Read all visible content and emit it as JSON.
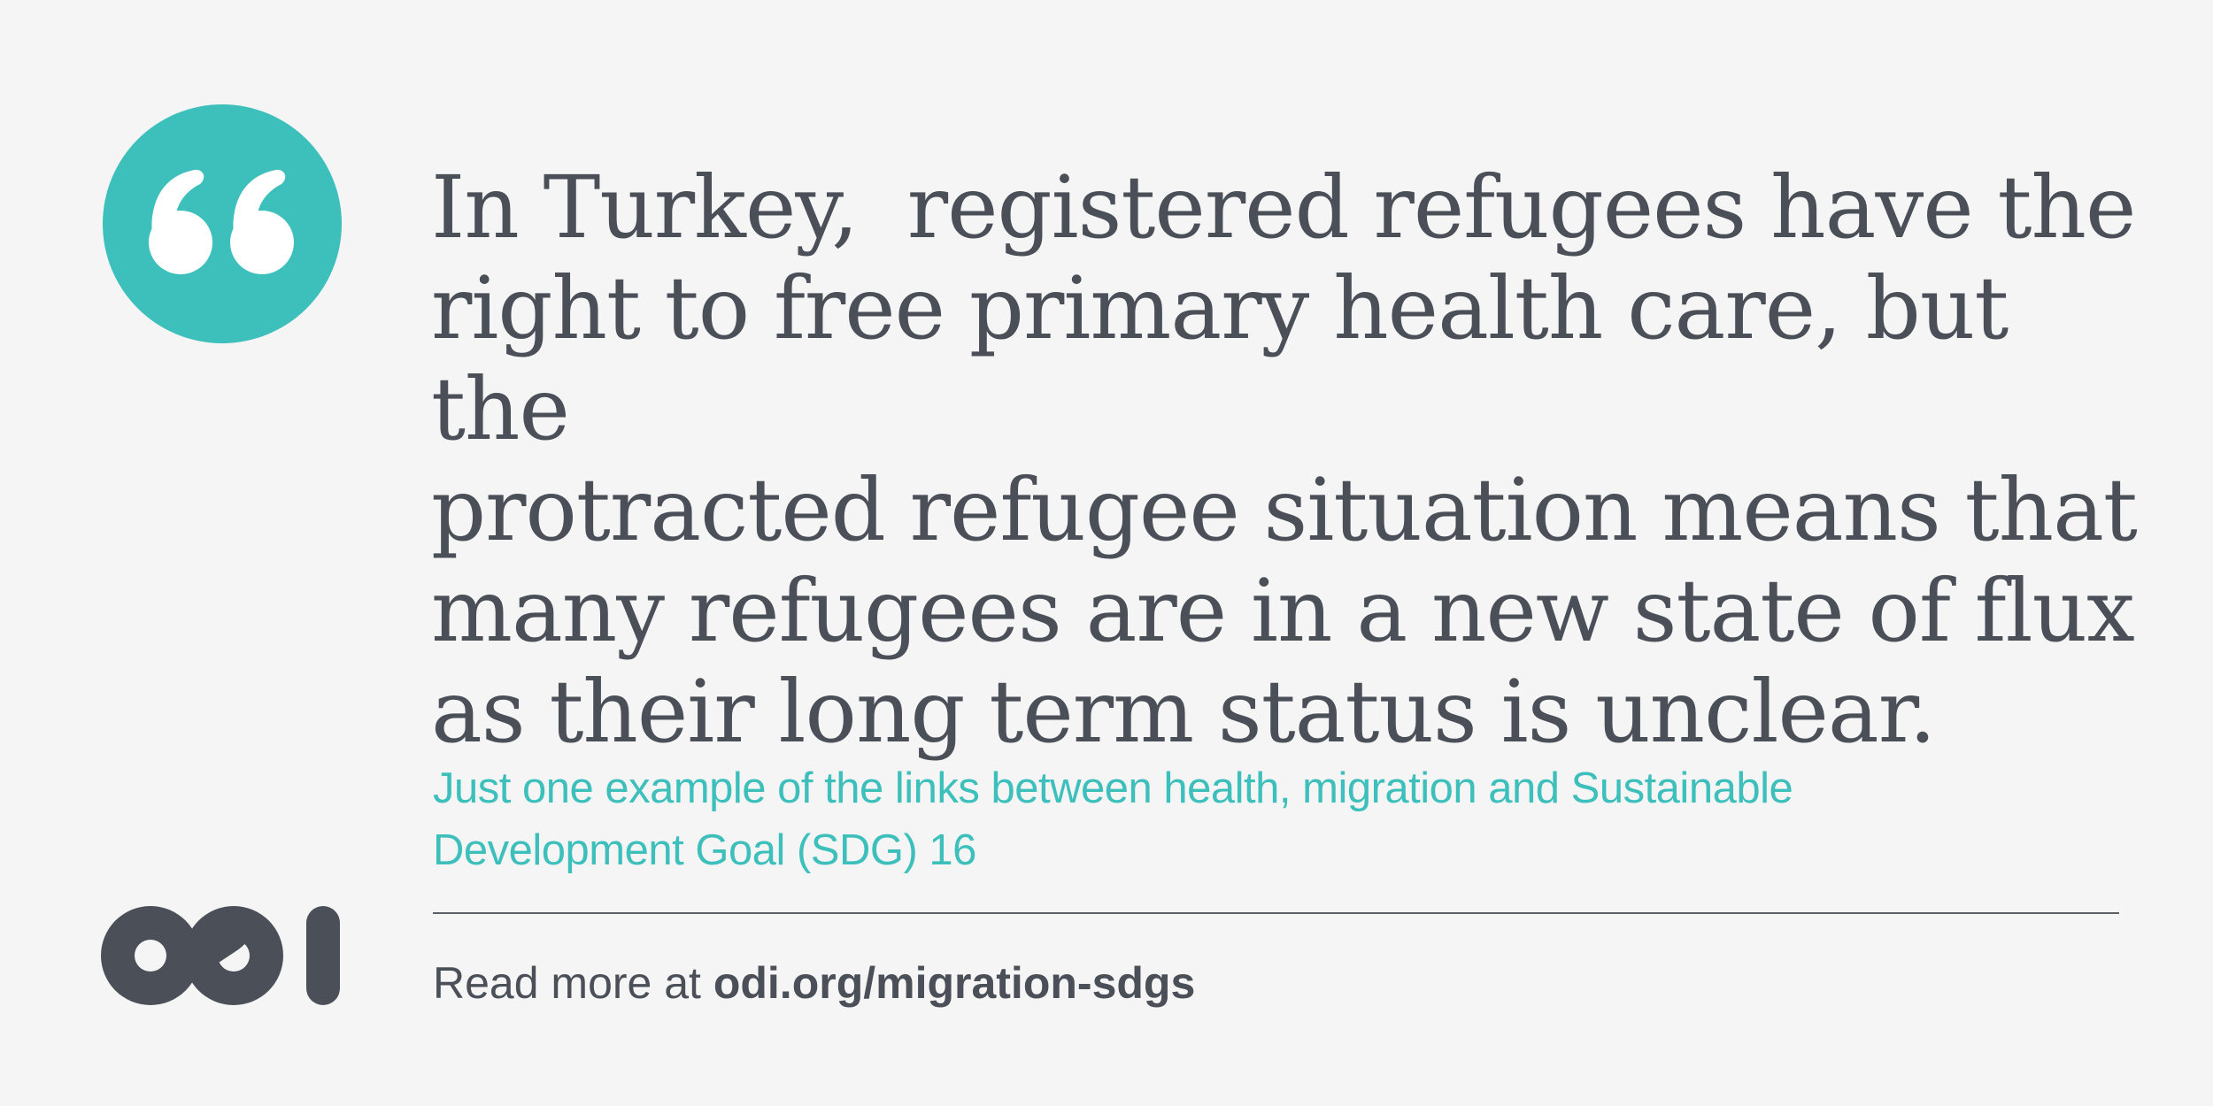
{
  "quote": {
    "icon": "quote-marks-icon",
    "text_lines": [
      "In Turkey,  registered refugees have the",
      "right to free primary health care, but the",
      "protracted refugee situation means that",
      "many refugees are in a new state of flux",
      "as their long term status is unclear."
    ]
  },
  "caption": {
    "lines": [
      "Just one example of the links between health, migration and Sustainable",
      "Development Goal (SDG) 16"
    ]
  },
  "footer": {
    "prefix": "Read more at ",
    "url": "odi.org/migration-sdgs"
  },
  "logo": {
    "icon": "odi-logo",
    "text": "odi"
  },
  "colors": {
    "background": "#f5f5f5",
    "accent": "#3dbfbb",
    "text": "#4a4f58"
  }
}
